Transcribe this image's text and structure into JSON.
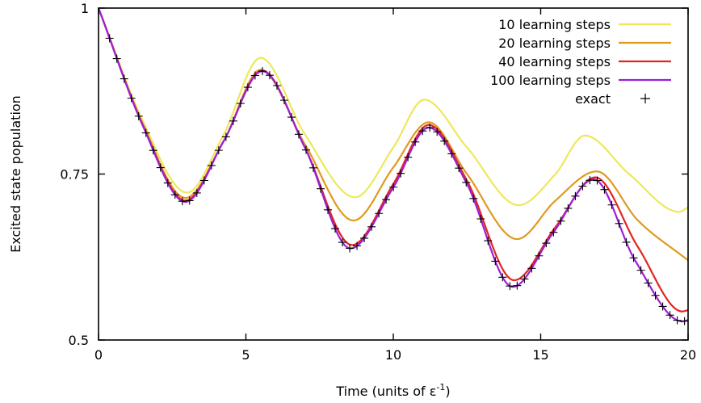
{
  "chart_data": {
    "type": "line",
    "title": "",
    "xlabel_main": "Time (units of ε",
    "xlabel_sup": "-1",
    "xlabel_close": ")",
    "ylabel": "Excited state population",
    "xlim": [
      0,
      20
    ],
    "ylim": [
      0.5,
      1.0
    ],
    "x_ticks": [
      0,
      5,
      10,
      15,
      20
    ],
    "x_tick_labels": [
      "0",
      "5",
      "10",
      "15",
      "20"
    ],
    "y_ticks": [
      0.5,
      0.75,
      1.0
    ],
    "y_tick_labels": [
      "0.5",
      "0.75",
      "1"
    ],
    "grid": false,
    "legend_position": "top-right",
    "series": [
      {
        "name": "10 learning steps",
        "color": "#ede85a",
        "style": "line",
        "points": [
          [
            0,
            1.0
          ],
          [
            1.5,
            0.83
          ],
          [
            3.0,
            0.722
          ],
          [
            4.25,
            0.81
          ],
          [
            5.5,
            0.925
          ],
          [
            7.0,
            0.81
          ],
          [
            8.7,
            0.715
          ],
          [
            10.0,
            0.79
          ],
          [
            11.05,
            0.862
          ],
          [
            12.5,
            0.79
          ],
          [
            14.25,
            0.703
          ],
          [
            15.5,
            0.75
          ],
          [
            16.5,
            0.808
          ],
          [
            18.0,
            0.75
          ],
          [
            19.7,
            0.693
          ],
          [
            20,
            0.7
          ]
        ]
      },
      {
        "name": "20 learning steps",
        "color": "#e09a1e",
        "style": "line",
        "points": [
          [
            0,
            1.0
          ],
          [
            1.5,
            0.826
          ],
          [
            2.95,
            0.714
          ],
          [
            4.25,
            0.8
          ],
          [
            5.5,
            0.907
          ],
          [
            7.0,
            0.795
          ],
          [
            8.65,
            0.68
          ],
          [
            10.0,
            0.76
          ],
          [
            11.2,
            0.828
          ],
          [
            12.5,
            0.75
          ],
          [
            14.2,
            0.652
          ],
          [
            15.5,
            0.71
          ],
          [
            16.9,
            0.754
          ],
          [
            18.3,
            0.68
          ],
          [
            20,
            0.62
          ]
        ]
      },
      {
        "name": "40 learning steps",
        "color": "#e22420",
        "style": "line",
        "points": [
          [
            0,
            1.0
          ],
          [
            1.5,
            0.824
          ],
          [
            2.95,
            0.71
          ],
          [
            4.25,
            0.8
          ],
          [
            5.55,
            0.906
          ],
          [
            7.0,
            0.79
          ],
          [
            8.6,
            0.643
          ],
          [
            10.0,
            0.735
          ],
          [
            11.2,
            0.824
          ],
          [
            12.5,
            0.74
          ],
          [
            14.1,
            0.59
          ],
          [
            15.5,
            0.67
          ],
          [
            16.85,
            0.745
          ],
          [
            18.3,
            0.64
          ],
          [
            19.8,
            0.543
          ],
          [
            20,
            0.545
          ]
        ]
      },
      {
        "name": "100 learning steps",
        "color": "#9c1fd6",
        "style": "line",
        "points": [
          [
            0,
            1.0
          ],
          [
            1.5,
            0.823
          ],
          [
            2.95,
            0.708
          ],
          [
            4.25,
            0.8
          ],
          [
            5.55,
            0.905
          ],
          [
            7.0,
            0.79
          ],
          [
            8.55,
            0.638
          ],
          [
            10.0,
            0.73
          ],
          [
            11.2,
            0.82
          ],
          [
            12.5,
            0.735
          ],
          [
            14.05,
            0.58
          ],
          [
            15.4,
            0.66
          ],
          [
            16.8,
            0.742
          ],
          [
            18.2,
            0.62
          ],
          [
            19.8,
            0.528
          ],
          [
            20,
            0.53
          ]
        ]
      },
      {
        "name": "exact",
        "color": "#000000",
        "style": "marker",
        "points": [
          [
            0,
            1.0
          ],
          [
            1.5,
            0.823
          ],
          [
            2.95,
            0.708
          ],
          [
            4.25,
            0.8
          ],
          [
            5.55,
            0.905
          ],
          [
            7.0,
            0.79
          ],
          [
            8.55,
            0.638
          ],
          [
            10.0,
            0.73
          ],
          [
            11.2,
            0.82
          ],
          [
            12.5,
            0.735
          ],
          [
            14.05,
            0.58
          ],
          [
            15.4,
            0.66
          ],
          [
            16.8,
            0.742
          ],
          [
            18.2,
            0.62
          ],
          [
            19.8,
            0.528
          ],
          [
            20,
            0.53
          ]
        ]
      }
    ]
  }
}
